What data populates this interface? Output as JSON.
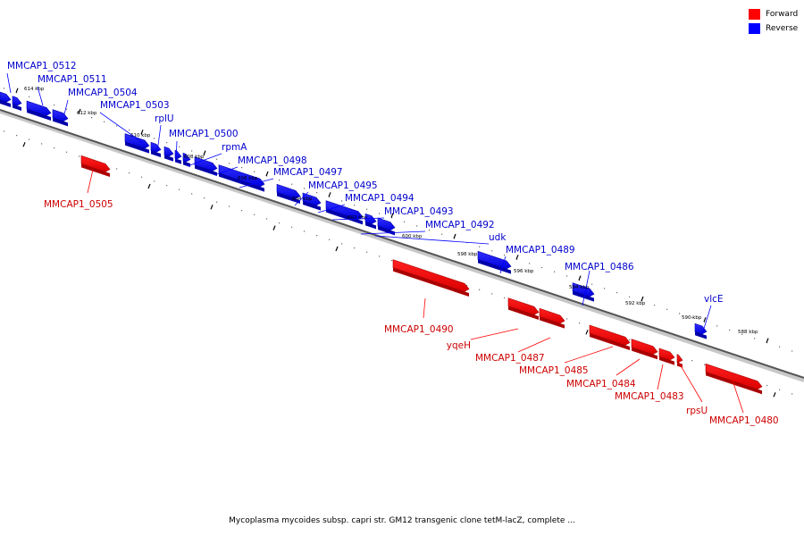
{
  "legend": {
    "forward_label": "Forward",
    "reverse_label": "Reverse",
    "forward_color": "#ff0000",
    "reverse_color": "#0000ff"
  },
  "caption": "Mycoplasma mycoides subsp. capri str. GM12 transgenic clone tetM-lacZ, complete ...",
  "ticks": [
    "614 kbp",
    "612 kbp",
    "610 kbp",
    "608 kbp",
    "606 kbp",
    "604 kbp",
    "602 kbp",
    "600 kbp",
    "598 kbp",
    "596 kbp",
    "594 kbp",
    "592 kbp",
    "590 kbp",
    "588 kbp"
  ],
  "forward_genes": [
    "MMCAP1_0505",
    "MMCAP1_0490",
    "yqeH",
    "MMCAP1_0487",
    "MMCAP1_0485",
    "MMCAP1_0484",
    "MMCAP1_0483",
    "rpsU",
    "MMCAP1_0480"
  ],
  "reverse_genes": [
    "MMCAP1_0512",
    "MMCAP1_0511",
    "MMCAP1_0504",
    "MMCAP1_0503",
    "rplU",
    "MMCAP1_0500",
    "rpmA",
    "MMCAP1_0498",
    "MMCAP1_0497",
    "MMCAP1_0495",
    "MMCAP1_0494",
    "MMCAP1_0493",
    "MMCAP1_0492",
    "udk",
    "MMCAP1_0489",
    "MMCAP1_0486",
    "vlcE"
  ]
}
